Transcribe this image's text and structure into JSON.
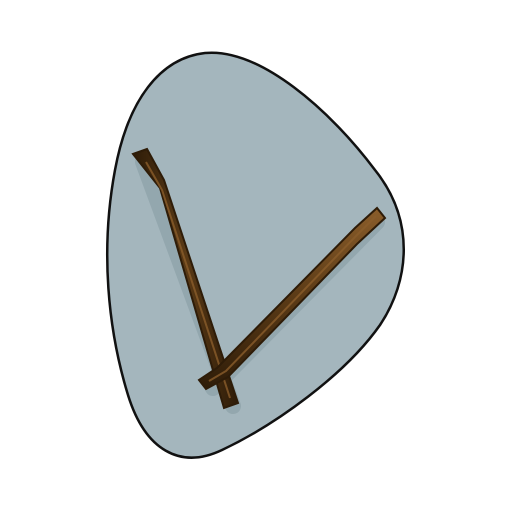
{
  "item": {
    "icon": "stone-with-two-sticks-icon",
    "stone_color": "#a4b6bd",
    "outline_color": "#111111",
    "stick_color": "#5a3a16",
    "stick_highlight": "#8a5d2a",
    "stick_shadow": "#2e1c08"
  }
}
